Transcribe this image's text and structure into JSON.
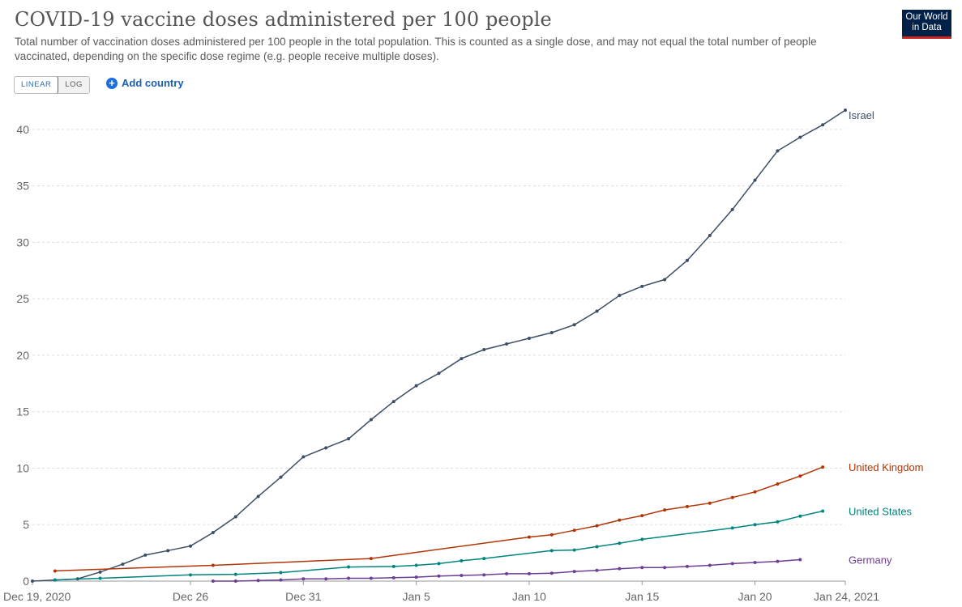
{
  "header": {
    "title": "COVID-19 vaccine doses administered per 100 people",
    "subtitle": "Total number of vaccination doses administered per 100 people in the total population. This is counted as a single dose, and may not equal the total number of people vaccinated, depending on the specific dose regime (e.g. people receive multiple doses).",
    "logo_line1": "Our World",
    "logo_line2": "in Data"
  },
  "controls": {
    "linear_label": "LINEAR",
    "log_label": "LOG",
    "add_country_label": "Add country",
    "add_icon": "plus-circle-icon"
  },
  "chart_data": {
    "type": "line",
    "ylim": [
      0,
      43
    ],
    "yticks": [
      0,
      5,
      10,
      15,
      20,
      25,
      30,
      35,
      40
    ],
    "xticks": [
      {
        "day": 0,
        "label": "Dec 19, 2020"
      },
      {
        "day": 7,
        "label": "Dec 26"
      },
      {
        "day": 12,
        "label": "Dec 31"
      },
      {
        "day": 17,
        "label": "Jan 5"
      },
      {
        "day": 22,
        "label": "Jan 10"
      },
      {
        "day": 27,
        "label": "Jan 15"
      },
      {
        "day": 32,
        "label": "Jan 20"
      },
      {
        "day": 36,
        "label": "Jan 24, 2021"
      }
    ],
    "grid": true,
    "legend": "line-end labels",
    "series": [
      {
        "name": "Israel",
        "color": "#3c4e66",
        "points": [
          [
            0,
            0.0
          ],
          [
            1,
            0.1
          ],
          [
            2,
            0.2
          ],
          [
            3,
            0.8
          ],
          [
            4,
            1.5
          ],
          [
            5,
            2.3
          ],
          [
            6,
            2.7
          ],
          [
            7,
            3.1
          ],
          [
            8,
            4.3
          ],
          [
            9,
            5.7
          ],
          [
            10,
            7.5
          ],
          [
            11,
            9.2
          ],
          [
            12,
            11.0
          ],
          [
            13,
            11.8
          ],
          [
            14,
            12.6
          ],
          [
            15,
            14.3
          ],
          [
            16,
            15.9
          ],
          [
            17,
            17.3
          ],
          [
            18,
            18.4
          ],
          [
            19,
            19.7
          ],
          [
            20,
            20.5
          ],
          [
            21,
            21.0
          ],
          [
            22,
            21.5
          ],
          [
            23,
            22.0
          ],
          [
            24,
            22.7
          ],
          [
            25,
            23.9
          ],
          [
            26,
            25.3
          ],
          [
            27,
            26.1
          ],
          [
            28,
            26.7
          ],
          [
            29,
            28.4
          ],
          [
            30,
            30.6
          ],
          [
            31,
            32.9
          ],
          [
            32,
            35.5
          ],
          [
            33,
            38.1
          ],
          [
            34,
            39.3
          ],
          [
            35,
            40.4
          ],
          [
            36,
            41.7
          ]
        ]
      },
      {
        "name": "United Kingdom",
        "color": "#b13507",
        "points": [
          [
            1,
            0.9
          ],
          [
            8,
            1.4
          ],
          [
            15,
            2.0
          ],
          [
            22,
            3.9
          ],
          [
            23,
            4.1
          ],
          [
            24,
            4.5
          ],
          [
            25,
            4.9
          ],
          [
            26,
            5.4
          ],
          [
            27,
            5.8
          ],
          [
            28,
            6.3
          ],
          [
            29,
            6.6
          ],
          [
            30,
            6.9
          ],
          [
            31,
            7.4
          ],
          [
            32,
            7.9
          ],
          [
            33,
            8.6
          ],
          [
            34,
            9.3
          ],
          [
            35,
            10.1
          ]
        ]
      },
      {
        "name": "United States",
        "color": "#00847e",
        "points": [
          [
            1,
            0.1
          ],
          [
            3,
            0.25
          ],
          [
            7,
            0.55
          ],
          [
            9,
            0.6
          ],
          [
            11,
            0.75
          ],
          [
            14,
            1.25
          ],
          [
            16,
            1.3
          ],
          [
            17,
            1.4
          ],
          [
            18,
            1.55
          ],
          [
            19,
            1.8
          ],
          [
            20,
            2.0
          ],
          [
            23,
            2.7
          ],
          [
            24,
            2.75
          ],
          [
            25,
            3.05
          ],
          [
            26,
            3.35
          ],
          [
            27,
            3.7
          ],
          [
            31,
            4.7
          ],
          [
            32,
            5.0
          ],
          [
            33,
            5.25
          ],
          [
            34,
            5.75
          ],
          [
            35,
            6.2
          ]
        ]
      },
      {
        "name": "Germany",
        "color": "#6d3e91",
        "points": [
          [
            8,
            0.0
          ],
          [
            9,
            0.0
          ],
          [
            10,
            0.05
          ],
          [
            11,
            0.1
          ],
          [
            12,
            0.2
          ],
          [
            13,
            0.2
          ],
          [
            14,
            0.25
          ],
          [
            15,
            0.25
          ],
          [
            16,
            0.3
          ],
          [
            17,
            0.35
          ],
          [
            18,
            0.45
          ],
          [
            19,
            0.5
          ],
          [
            20,
            0.55
          ],
          [
            21,
            0.65
          ],
          [
            22,
            0.65
          ],
          [
            23,
            0.7
          ],
          [
            24,
            0.85
          ],
          [
            25,
            0.95
          ],
          [
            26,
            1.1
          ],
          [
            27,
            1.2
          ],
          [
            28,
            1.2
          ],
          [
            29,
            1.3
          ],
          [
            30,
            1.4
          ],
          [
            31,
            1.55
          ],
          [
            32,
            1.65
          ],
          [
            33,
            1.75
          ],
          [
            34,
            1.9
          ]
        ]
      }
    ]
  }
}
